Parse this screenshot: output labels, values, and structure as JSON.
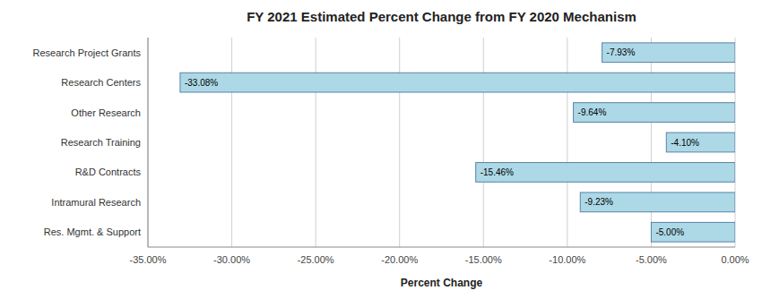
{
  "chart_data": {
    "type": "bar",
    "orientation": "horizontal",
    "title": "FY 2021 Estimated Percent Change from FY 2020 Mechanism",
    "xlabel": "Percent Change",
    "categories": [
      "Research Project Grants",
      "Research Centers",
      "Other Research",
      "Research Training",
      "R&D Contracts",
      "Intramural Research",
      "Res. Mgmt. & Support"
    ],
    "values": [
      -7.93,
      -33.08,
      -9.64,
      -4.1,
      -15.46,
      -9.23,
      -5.0
    ],
    "value_labels": [
      "-7.93%",
      "-33.08%",
      "-9.64%",
      "-4.10%",
      "-15.46%",
      "-9.23%",
      "-5.00%"
    ],
    "data_labels": true,
    "color": "#ADD8E6",
    "xlim": [
      -35,
      0
    ],
    "xticks": [
      {
        "value": -35,
        "label": "-35.00%"
      },
      {
        "value": -30,
        "label": "-30.00%"
      },
      {
        "value": -25,
        "label": "-25.00%"
      },
      {
        "value": -20,
        "label": "-20.00%"
      },
      {
        "value": -15,
        "label": "-15.00%"
      },
      {
        "value": -10,
        "label": "-10.00%"
      },
      {
        "value": -5,
        "label": "-5.00%"
      },
      {
        "value": 0,
        "label": "0.00%"
      }
    ],
    "grid": true
  }
}
